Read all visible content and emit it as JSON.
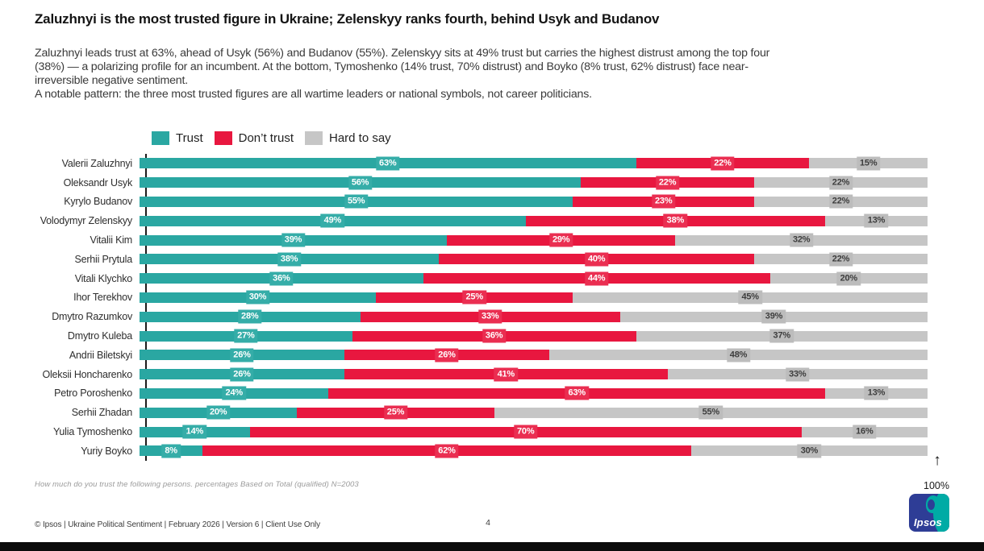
{
  "page": {
    "title": "Zaluzhnyi is the most trusted figure in Ukraine; Zelenskyy ranks fourth, behind Usyk and Budanov",
    "body": "Zaluzhnyi leads trust at 63%, ahead of Usyk (56%) and Budanov (55%). Zelenskyy sits at 49% trust but carries the highest distrust among the top four\n(38%) — a polarizing profile for an incumbent. At the bottom, Tymoshenko (14% trust, 70% distrust) and Boyko (8% trust, 62% distrust) face near-\nirreversible negative sentiment.\nA notable pattern: the three most trusted figures are all wartime leaders or national symbols, not career politicians.",
    "footnote": "How much do you trust the following persons. percentages Based on Total (qualified) N=2003",
    "footer": "© Ipsos | Ukraine Political Sentiment | February 2026 | Version 6 | Client Use Only",
    "page_number": "4",
    "axis_end_label": "100%",
    "logo_text": "Ipsos"
  },
  "icons": {
    "arrow_up": "↑"
  },
  "colors": {
    "trust": "#2aa7a2",
    "trust_chip": "#35ada8",
    "dont_trust": "#e8173f",
    "dont_trust_chip": "#ea2e51",
    "hard_to_say": "#c6c6c6",
    "hard_to_say_chip": "#bcbcbc",
    "chip_text_light": "#ffffff",
    "chip_text_dark": "#3d3d3d",
    "logo_blue": "#2e3d96",
    "logo_teal": "#00aba5"
  },
  "chart_data": {
    "type": "bar",
    "orientation": "horizontal",
    "stacked": true,
    "title": "",
    "xlabel": "",
    "ylabel": "",
    "xlim": [
      0,
      100
    ],
    "value_suffix": "%",
    "grid": false,
    "legend_position": "top",
    "categories": [
      "Valerii Zaluzhnyi",
      "Oleksandr Usyk",
      "Kyrylo Budanov",
      "Volodymyr Zelenskyy",
      "Vitalii Kim",
      "Serhii Prytula",
      "Vitali Klychko",
      "Ihor Terekhov",
      "Dmytro Razumkov",
      "Dmytro Kuleba",
      "Andrii Biletskyi",
      "Oleksii Honcharenko",
      "Petro Poroshenko",
      "Serhii Zhadan",
      "Yulia Tymoshenko",
      "Yuriy Boyko"
    ],
    "series": [
      {
        "key": "trust",
        "name": "Trust",
        "color": "#2aa7a2",
        "chip_color": "#35ada8",
        "label_text_color": "#ffffff",
        "values": [
          63,
          56,
          55,
          49,
          39,
          38,
          36,
          30,
          28,
          27,
          26,
          26,
          24,
          20,
          14,
          8
        ]
      },
      {
        "key": "dont-trust",
        "name": "Don’t trust",
        "color": "#e8173f",
        "chip_color": "#ea2e51",
        "label_text_color": "#ffffff",
        "values": [
          22,
          22,
          23,
          38,
          29,
          40,
          44,
          25,
          33,
          36,
          26,
          41,
          63,
          25,
          70,
          62
        ]
      },
      {
        "key": "hard-to-say",
        "name": "Hard to say",
        "color": "#c6c6c6",
        "chip_color": "#bcbcbc",
        "label_text_color": "#3d3d3d",
        "values": [
          15,
          22,
          22,
          13,
          32,
          22,
          20,
          45,
          39,
          37,
          48,
          33,
          13,
          55,
          16,
          30
        ]
      }
    ]
  }
}
